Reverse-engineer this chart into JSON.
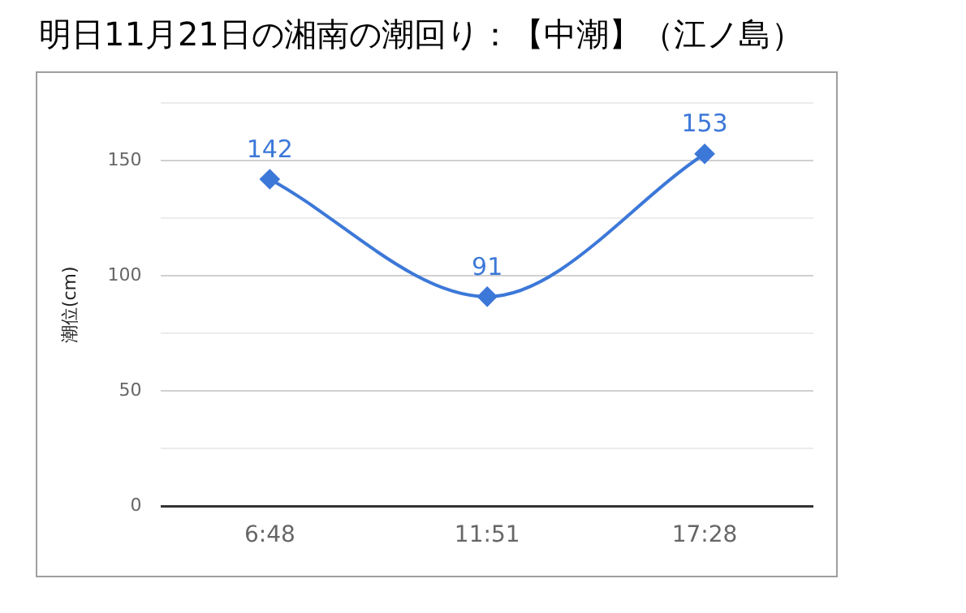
{
  "chart_data": {
    "type": "line",
    "title": "明日11月21日の湘南の潮回り：【中潮】（江ノ島）",
    "ylabel": "潮位(cm)",
    "categories": [
      "6:48",
      "11:51",
      "17:28"
    ],
    "series": [
      {
        "color": "#3c78d8",
        "values": [
          142,
          91,
          153
        ]
      }
    ],
    "ylim": [
      0,
      175
    ],
    "yticks": [
      0,
      {
        "value": 25,
        "label": null
      },
      50,
      {
        "value": 75,
        "label": null
      },
      100,
      {
        "value": 125,
        "label": null
      },
      150,
      {
        "value": 175,
        "label": null
      }
    ],
    "grid": "y",
    "legend": false,
    "marker": "diamond",
    "line_style": "solid",
    "data_labels": true
  }
}
